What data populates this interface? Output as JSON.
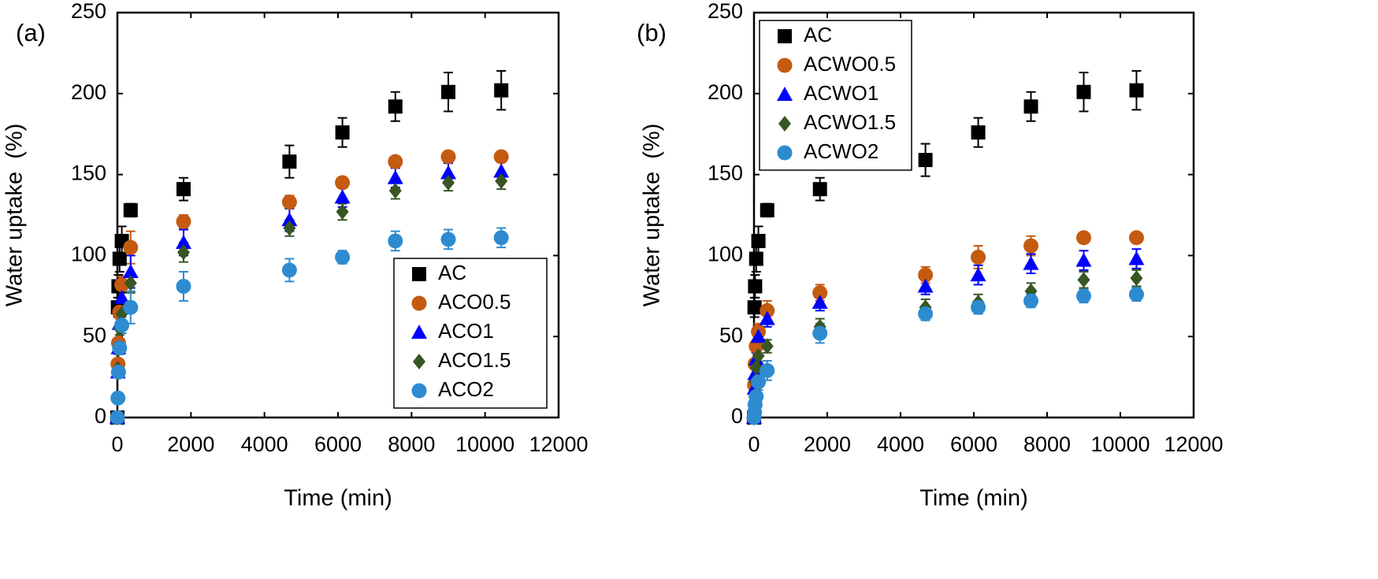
{
  "chart_data": [
    {
      "type": "scatter",
      "panel_label": "(a)",
      "xlabel": "Time (min)",
      "ylabel": "Water uptake  (%)",
      "xlim": [
        0,
        12000
      ],
      "ylim": [
        0,
        250
      ],
      "xticks": [
        0,
        2000,
        4000,
        6000,
        8000,
        10000,
        12000
      ],
      "yticks": [
        0,
        50,
        100,
        150,
        200,
        250
      ],
      "legend_position": "bottom-right",
      "series": [
        {
          "name": "AC",
          "marker": "square",
          "color": "#000000",
          "x": [
            0,
            15,
            30,
            60,
            120,
            360,
            1800,
            4680,
            6120,
            7560,
            9000,
            10440
          ],
          "y": [
            0,
            68,
            81,
            98,
            109,
            128,
            141,
            158,
            176,
            192,
            201,
            202
          ],
          "err": [
            0,
            6,
            7,
            8,
            9,
            4,
            7,
            10,
            9,
            9,
            12,
            12
          ]
        },
        {
          "name": "ACO0.5",
          "marker": "circle",
          "color": "#C55A11",
          "x": [
            0,
            15,
            30,
            60,
            120,
            360,
            1800,
            4680,
            6120,
            7560,
            9000,
            10440
          ],
          "y": [
            0,
            33,
            46,
            65,
            82,
            105,
            121,
            133,
            145,
            158,
            161,
            161
          ],
          "err": [
            0,
            3,
            3,
            4,
            5,
            10,
            4,
            4,
            3,
            3,
            3,
            3
          ]
        },
        {
          "name": "ACO1",
          "marker": "triangle",
          "color": "#0000FF",
          "x": [
            0,
            15,
            30,
            60,
            120,
            360,
            1800,
            4680,
            6120,
            7560,
            9000,
            10440
          ],
          "y": [
            0,
            28,
            43,
            58,
            74,
            90,
            108,
            122,
            136,
            148,
            151,
            152
          ],
          "err": [
            0,
            3,
            3,
            4,
            6,
            10,
            8,
            7,
            6,
            6,
            6,
            6
          ]
        },
        {
          "name": "ACO1.5",
          "marker": "diamond",
          "color": "#375623",
          "x": [
            0,
            15,
            30,
            60,
            120,
            360,
            1800,
            4680,
            6120,
            7560,
            9000,
            10440
          ],
          "y": [
            0,
            30,
            42,
            55,
            64,
            83,
            102,
            117,
            127,
            140,
            145,
            146
          ],
          "err": [
            0,
            3,
            3,
            4,
            5,
            6,
            6,
            5,
            5,
            5,
            5,
            5
          ]
        },
        {
          "name": "ACO2",
          "marker": "circle",
          "color": "#2E8BD0",
          "x": [
            0,
            15,
            30,
            60,
            120,
            360,
            1800,
            4680,
            6120,
            7560,
            9000,
            10440
          ],
          "y": [
            0,
            12,
            28,
            43,
            57,
            68,
            81,
            91,
            99,
            109,
            110,
            111
          ],
          "err": [
            0,
            3,
            3,
            4,
            5,
            10,
            9,
            7,
            4,
            6,
            6,
            6
          ]
        }
      ]
    },
    {
      "type": "scatter",
      "panel_label": "(b)",
      "xlabel": "Time (min)",
      "ylabel": "Water uptake  (%)",
      "xlim": [
        0,
        12000
      ],
      "ylim": [
        0,
        250
      ],
      "xticks": [
        0,
        2000,
        4000,
        6000,
        8000,
        10000,
        12000
      ],
      "yticks": [
        0,
        50,
        100,
        150,
        200,
        250
      ],
      "legend_position": "top-left",
      "series": [
        {
          "name": "AC",
          "marker": "square",
          "color": "#000000",
          "x": [
            0,
            15,
            30,
            60,
            120,
            360,
            1800,
            4680,
            6120,
            7560,
            9000,
            10440
          ],
          "y": [
            0,
            68,
            81,
            98,
            109,
            128,
            141,
            159,
            176,
            192,
            201,
            202
          ],
          "err": [
            0,
            6,
            7,
            8,
            9,
            4,
            7,
            10,
            9,
            9,
            12,
            12
          ]
        },
        {
          "name": "ACWO0.5",
          "marker": "circle",
          "color": "#C55A11",
          "x": [
            0,
            15,
            30,
            60,
            120,
            360,
            1800,
            4680,
            6120,
            7560,
            9000,
            10440
          ],
          "y": [
            0,
            20,
            33,
            44,
            53,
            66,
            77,
            88,
            99,
            106,
            111,
            111
          ],
          "err": [
            0,
            3,
            3,
            4,
            5,
            6,
            5,
            5,
            7,
            6,
            3,
            3
          ]
        },
        {
          "name": "ACWO1",
          "marker": "triangle",
          "color": "#0000FF",
          "x": [
            0,
            15,
            30,
            60,
            120,
            360,
            1800,
            4680,
            6120,
            7560,
            9000,
            10440
          ],
          "y": [
            0,
            18,
            27,
            36,
            50,
            61,
            71,
            81,
            88,
            95,
            97,
            98
          ],
          "err": [
            0,
            3,
            3,
            4,
            5,
            5,
            5,
            5,
            6,
            6,
            6,
            6
          ]
        },
        {
          "name": "ACWO1.5",
          "marker": "diamond",
          "color": "#375623",
          "x": [
            0,
            15,
            30,
            60,
            120,
            360,
            1800,
            4680,
            6120,
            7560,
            9000,
            10440
          ],
          "y": [
            0,
            13,
            22,
            31,
            38,
            44,
            56,
            68,
            71,
            78,
            85,
            86
          ],
          "err": [
            0,
            2,
            3,
            3,
            4,
            4,
            5,
            5,
            5,
            5,
            5,
            5
          ]
        },
        {
          "name": "ACWO2",
          "marker": "circle",
          "color": "#2E8BD0",
          "x": [
            0,
            15,
            30,
            60,
            120,
            360,
            1800,
            4680,
            6120,
            7560,
            9000,
            10440
          ],
          "y": [
            0,
            3,
            8,
            13,
            22,
            29,
            52,
            64,
            68,
            72,
            75,
            76
          ],
          "err": [
            0,
            2,
            2,
            3,
            5,
            6,
            6,
            4,
            4,
            4,
            4,
            4
          ]
        }
      ]
    }
  ]
}
